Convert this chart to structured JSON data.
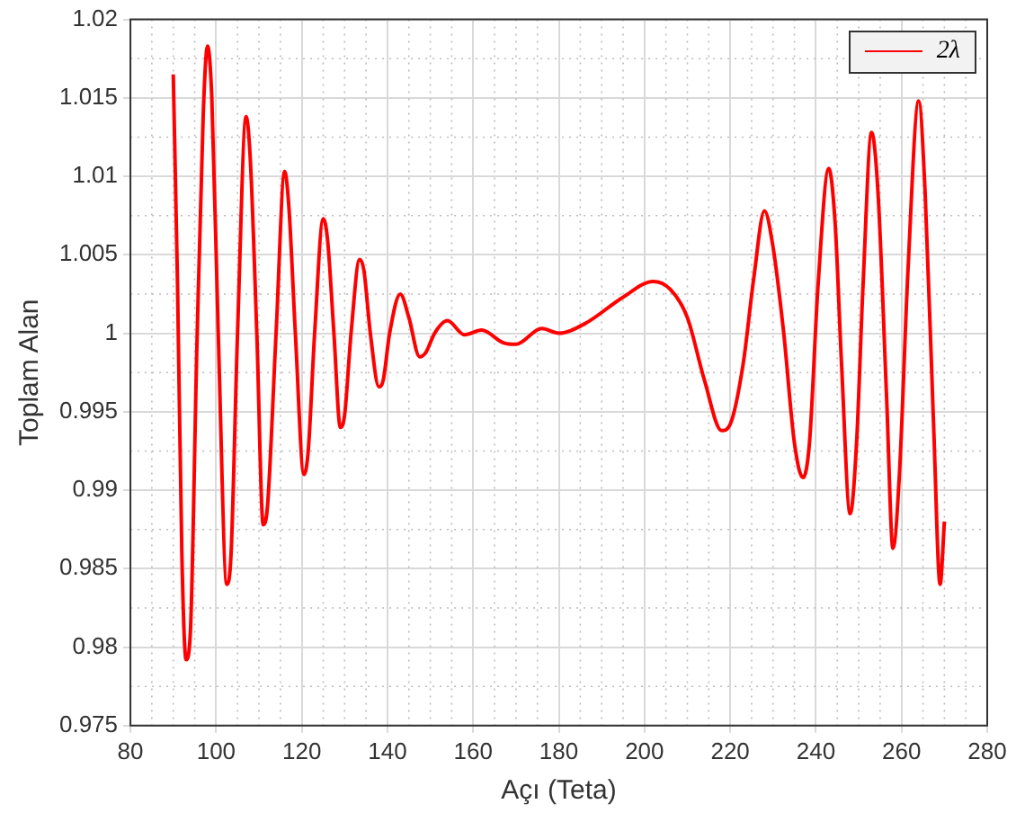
{
  "chart_data": {
    "type": "line",
    "xlabel": "Açı (Teta)",
    "ylabel": "Toplam Alan",
    "x": [
      90,
      91,
      92,
      93,
      94,
      95.5,
      97,
      98,
      99,
      100.5,
      102.5,
      103.5,
      105,
      107,
      108,
      109.5,
      111,
      112,
      114,
      116,
      117,
      118.5,
      120.5,
      121.5,
      123,
      125,
      126,
      127.5,
      129,
      130,
      131.5,
      133.5,
      134.5,
      136,
      138,
      139,
      140.5,
      143,
      145,
      147.5,
      149,
      151,
      154,
      158,
      162,
      167,
      170,
      176,
      180,
      186,
      195,
      202,
      206,
      210,
      214,
      218,
      220,
      223,
      225.5,
      228,
      230,
      232.5,
      235,
      237,
      238.5,
      240.5,
      243,
      244.5,
      246,
      248,
      249.5,
      251,
      253,
      254.5,
      256.5,
      258,
      259.5,
      261.5,
      264,
      265.5,
      267.5,
      269,
      270
    ],
    "series": [
      {
        "name": "2λ",
        "color": "#ff0000",
        "values": [
          1.0165,
          1.003,
          0.986,
          0.9792,
          0.981,
          0.999,
          1.014,
          1.0183,
          1.015,
          1.0,
          0.984,
          0.986,
          1.0,
          1.0138,
          1.011,
          1.0,
          0.9878,
          0.989,
          1.0,
          1.0103,
          1.008,
          1.0,
          0.991,
          0.9925,
          1.0,
          1.0073,
          1.006,
          1.0,
          0.994,
          0.9948,
          1.0,
          1.0047,
          1.004,
          1.0,
          0.9966,
          0.997,
          1.0,
          1.0025,
          1.001,
          0.9985,
          0.9988,
          1.0,
          1.0008,
          0.9999,
          1.0002,
          0.9994,
          0.9993,
          1.0003,
          1.0,
          1.0006,
          1.0023,
          1.0033,
          1.0028,
          1.001,
          0.997,
          0.9938,
          0.9942,
          0.998,
          1.0035,
          1.0078,
          1.0055,
          1.0,
          0.993,
          0.9908,
          0.993,
          1.003,
          1.0105,
          1.007,
          0.998,
          0.9885,
          0.993,
          1.003,
          1.0128,
          1.009,
          0.996,
          0.9863,
          0.991,
          1.004,
          1.0148,
          1.009,
          0.994,
          0.984,
          0.988
        ]
      }
    ],
    "xlim": [
      80,
      280
    ],
    "xticks": [
      80,
      100,
      120,
      140,
      160,
      180,
      200,
      220,
      240,
      260,
      280
    ],
    "ylim": [
      0.975,
      1.02
    ],
    "yticks": [
      0.975,
      0.98,
      0.985,
      0.99,
      0.995,
      1,
      1.005,
      1.01,
      1.015,
      1.02
    ],
    "grid": true,
    "legend": "top right",
    "marker": "none",
    "line_style": "solid"
  }
}
